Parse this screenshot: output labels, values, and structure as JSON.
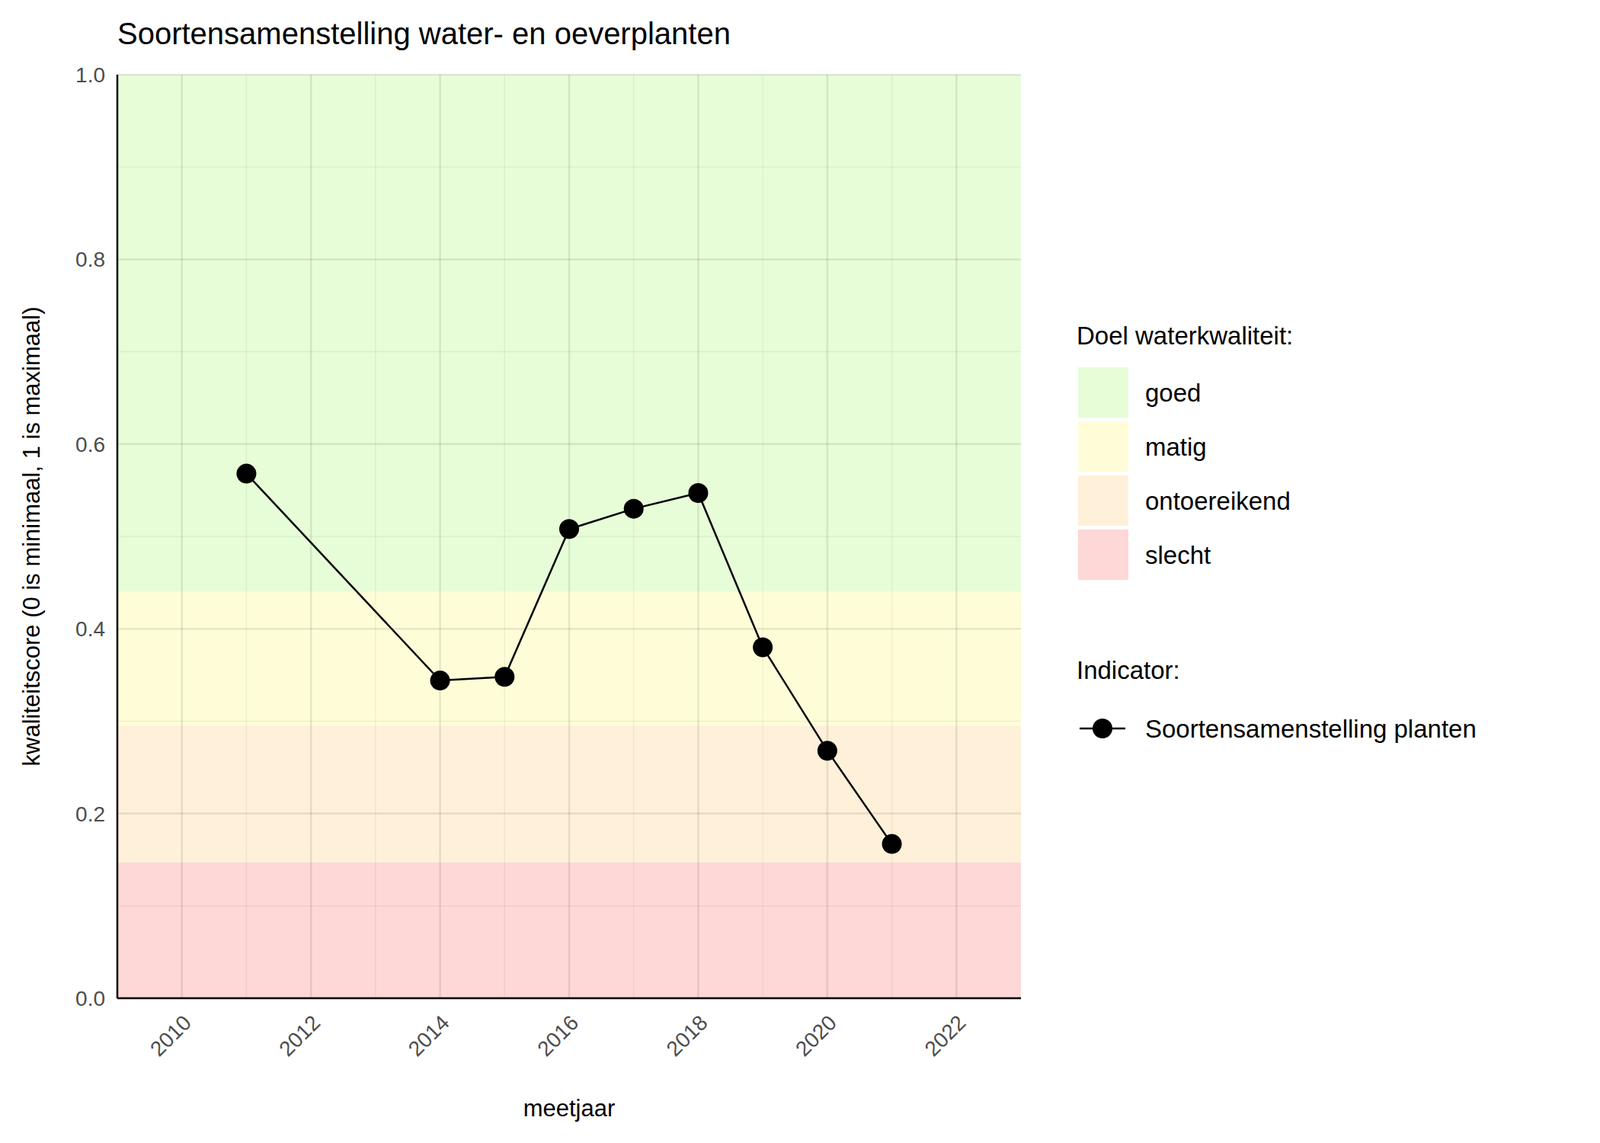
{
  "chart_data": {
    "type": "line",
    "title": "Soortensamenstelling water- en oeverplanten",
    "x_label": "meetjaar",
    "y_label": "kwaliteitscore (0 is minimaal, 1 is maximaal)",
    "x": [
      2011,
      2014,
      2015,
      2016,
      2017,
      2018,
      2019,
      2020,
      2021
    ],
    "series": [
      {
        "name": "Soortensamenstelling planten",
        "color": "#000000",
        "marker": "circle",
        "line_style": "solid",
        "values": [
          0.568,
          0.344,
          0.348,
          0.508,
          0.53,
          0.547,
          0.38,
          0.268,
          0.167
        ]
      }
    ],
    "xlim": [
      2009,
      2023
    ],
    "xticks": [
      2010,
      2012,
      2014,
      2016,
      2018,
      2020,
      2022
    ],
    "ylim": [
      0,
      1
    ],
    "yticks": [
      {
        "value": 0,
        "label": "0.0"
      },
      {
        "value": 0.2,
        "label": "0.2"
      },
      {
        "value": 0.4,
        "label": "0.4"
      },
      {
        "value": 0.6,
        "label": "0.6"
      },
      {
        "value": 0.8,
        "label": "0.8"
      },
      {
        "value": 1,
        "label": "1.0"
      }
    ],
    "grid": true,
    "band_legend_title": "Doel waterkwaliteit:",
    "series_legend_title": "Indicator:",
    "bands": [
      {
        "name": "goed",
        "color": "#e6fdd8",
        "from": 0.44,
        "to": 1.0
      },
      {
        "name": "matig",
        "color": "#fefdd8",
        "from": 0.295,
        "to": 0.44
      },
      {
        "name": "ontoereikend",
        "color": "#fef0d9",
        "from": 0.147,
        "to": 0.295
      },
      {
        "name": "slecht",
        "color": "#fed7d7",
        "from": 0,
        "to": 0.147
      }
    ]
  }
}
